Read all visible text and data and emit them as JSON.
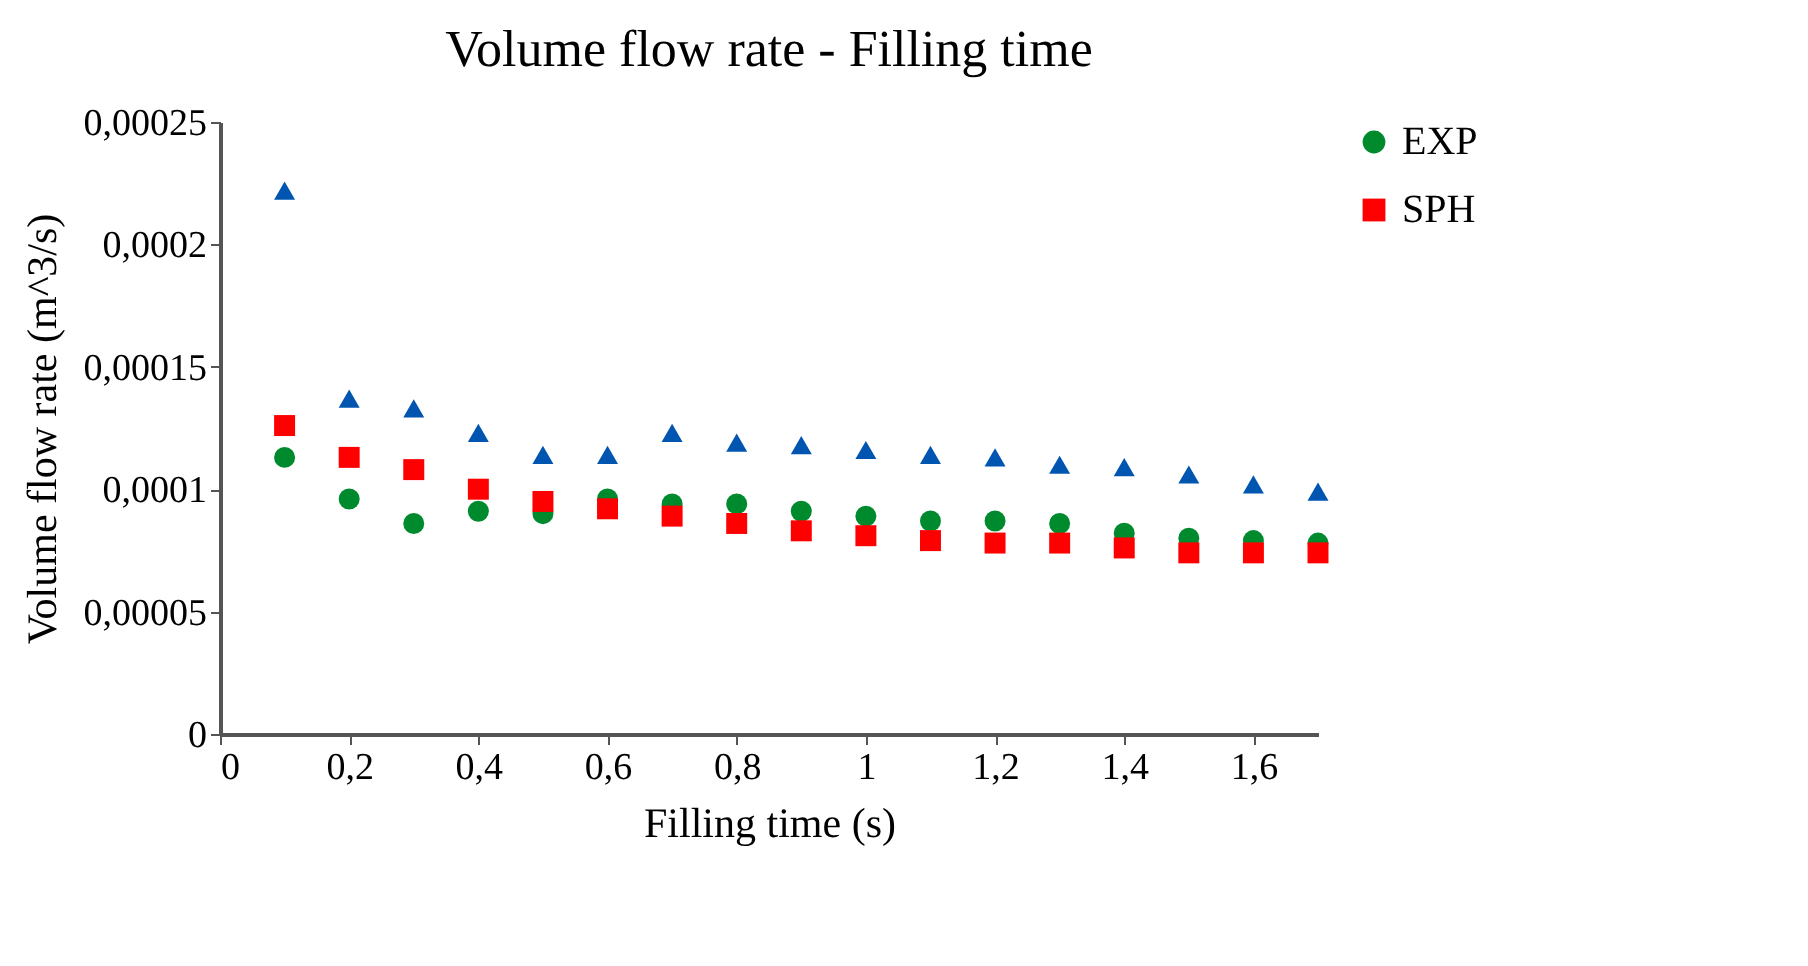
{
  "chart_data": {
    "type": "scatter",
    "title": "Volume flow rate - Filling time",
    "xlabel": "Filling time (s)",
    "ylabel": "Volume flow rate (m^3/s)",
    "x": [
      0.1,
      0.2,
      0.3,
      0.4,
      0.5,
      0.6,
      0.7,
      0.8,
      0.9,
      1.0,
      1.1,
      1.2,
      1.3,
      1.4,
      1.5,
      1.6,
      1.7
    ],
    "series": [
      {
        "name": "EXP",
        "color": "#008a2e",
        "marker": "circle",
        "values": [
          0.000113,
          9.6e-05,
          8.6e-05,
          9.1e-05,
          9e-05,
          9.6e-05,
          9.4e-05,
          9.4e-05,
          9.1e-05,
          8.9e-05,
          8.7e-05,
          8.7e-05,
          8.6e-05,
          8.2e-05,
          8e-05,
          7.9e-05,
          7.8e-05
        ]
      },
      {
        "name": "SPH",
        "color": "#ff0000",
        "marker": "square",
        "values": [
          0.000126,
          0.000113,
          0.000108,
          0.0001,
          9.5e-05,
          9.2e-05,
          8.9e-05,
          8.6e-05,
          8.3e-05,
          8.1e-05,
          7.9e-05,
          7.8e-05,
          7.8e-05,
          7.6e-05,
          7.4e-05,
          7.4e-05,
          7.4e-05
        ]
      },
      {
        "color": "#0055b0",
        "marker": "triangle",
        "values": [
          0.000222,
          0.000137,
          0.000133,
          0.000123,
          0.000114,
          0.000114,
          0.000123,
          0.000119,
          0.000118,
          0.000116,
          0.000114,
          0.000113,
          0.00011,
          0.000109,
          0.000106,
          0.000102,
          9.9e-05
        ]
      }
    ],
    "xlim": [
      0,
      1.7
    ],
    "xticks": [
      0,
      {
        "value": 0.2,
        "label": "0,2"
      },
      {
        "value": 0.4,
        "label": "0,4"
      },
      {
        "value": 0.6,
        "label": "0,6"
      },
      {
        "value": 0.8,
        "label": "0,8"
      },
      1,
      {
        "value": 1.2,
        "label": "1,2"
      },
      {
        "value": 1.4,
        "label": "1,4"
      },
      {
        "value": 1.6,
        "label": "1,6"
      }
    ],
    "ylim": [
      0,
      0.00025
    ],
    "yticks": [
      0,
      {
        "value": 5e-05,
        "label": "0,00005"
      },
      {
        "value": 0.0001,
        "label": "0,0001"
      },
      {
        "value": 0.00015,
        "label": "0,00015"
      },
      {
        "value": 0.0002,
        "label": "0,0002"
      },
      {
        "value": 0.00025,
        "label": "0,00025"
      }
    ],
    "grid": false,
    "legend": "right"
  }
}
